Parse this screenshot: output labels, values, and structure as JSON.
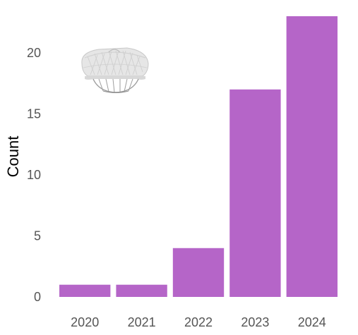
{
  "chart_data": {
    "type": "bar",
    "categories": [
      "2020",
      "2021",
      "2022",
      "2023",
      "2024"
    ],
    "values": [
      1,
      1,
      4,
      17,
      23
    ],
    "xlabel": "",
    "ylabel": "Count",
    "ylim": [
      0,
      23
    ],
    "yticks": [
      0,
      5,
      10,
      15,
      20
    ],
    "grid": false,
    "bar_color": "#b565c8",
    "background": "#ffffff",
    "inset_image": "wicker-basket-lamp-icon"
  }
}
